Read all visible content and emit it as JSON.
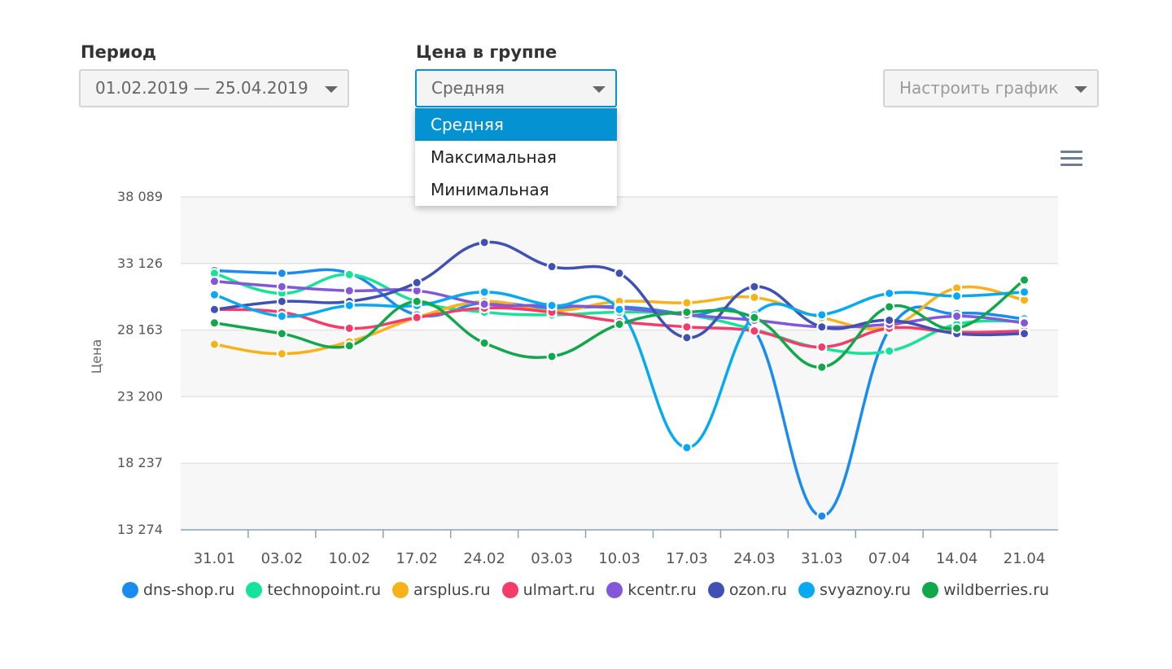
{
  "filters": {
    "period_label": "Период",
    "period_value": "01.02.2019 — 25.04.2019",
    "price_label": "Цена в группе",
    "price_value": "Средняя",
    "price_options": [
      "Средняя",
      "Максимальная",
      "Минимальная"
    ],
    "configure_label": "Настроить график"
  },
  "colors": {
    "accent": "#0592d3"
  },
  "chart_data": {
    "type": "line",
    "ylabel": "Цена",
    "xlabel": "",
    "ylim": [
      13274,
      38089
    ],
    "yticks": [
      "38 089",
      "33 126",
      "28 163",
      "23 200",
      "18 237",
      "13 274"
    ],
    "categories": [
      "31.01",
      "03.02",
      "10.02",
      "17.02",
      "24.02",
      "03.03",
      "10.03",
      "17.03",
      "24.03",
      "31.03",
      "07.04",
      "14.04",
      "21.04"
    ],
    "series": [
      {
        "name": "dns-shop.ru",
        "color": "#1a8cf0",
        "values": [
          32600,
          32400,
          32400,
          29300,
          30200,
          29800,
          29900,
          29300,
          28200,
          14300,
          28200,
          29400,
          29000
        ]
      },
      {
        "name": "technopoint.ru",
        "color": "#16e39a",
        "values": [
          32400,
          30900,
          32300,
          30300,
          29500,
          29300,
          29500,
          29300,
          28200,
          26800,
          26600,
          28600,
          28800
        ]
      },
      {
        "name": "arsplus.ru",
        "color": "#f7b21a",
        "values": [
          27100,
          26400,
          27300,
          29100,
          30300,
          29600,
          30300,
          30200,
          30600,
          29100,
          28400,
          31300,
          30400
        ]
      },
      {
        "name": "ulmart.ru",
        "color": "#f43b69",
        "values": [
          29700,
          29500,
          28300,
          29100,
          29800,
          29500,
          28800,
          28400,
          28100,
          26900,
          28300,
          28000,
          28100
        ]
      },
      {
        "name": "kcentr.ru",
        "color": "#8357d9",
        "values": [
          31800,
          31400,
          31100,
          31100,
          30100,
          30000,
          29800,
          29300,
          28900,
          28400,
          28600,
          29200,
          28700
        ]
      },
      {
        "name": "ozon.ru",
        "color": "#3f51b5",
        "values": [
          29700,
          30300,
          30300,
          31700,
          34700,
          32900,
          32400,
          27600,
          31400,
          28400,
          28900,
          27900,
          27900
        ]
      },
      {
        "name": "svyaznoy.ru",
        "color": "#06aaf2",
        "values": [
          30800,
          29200,
          30000,
          30000,
          31000,
          30000,
          29700,
          19400,
          29300,
          29300,
          30900,
          30700,
          31000
        ]
      },
      {
        "name": "wildberries.ru",
        "color": "#10a84a",
        "values": [
          28700,
          27900,
          27000,
          30300,
          27200,
          26200,
          28600,
          29500,
          29100,
          25400,
          29900,
          28300,
          31900
        ]
      }
    ]
  }
}
